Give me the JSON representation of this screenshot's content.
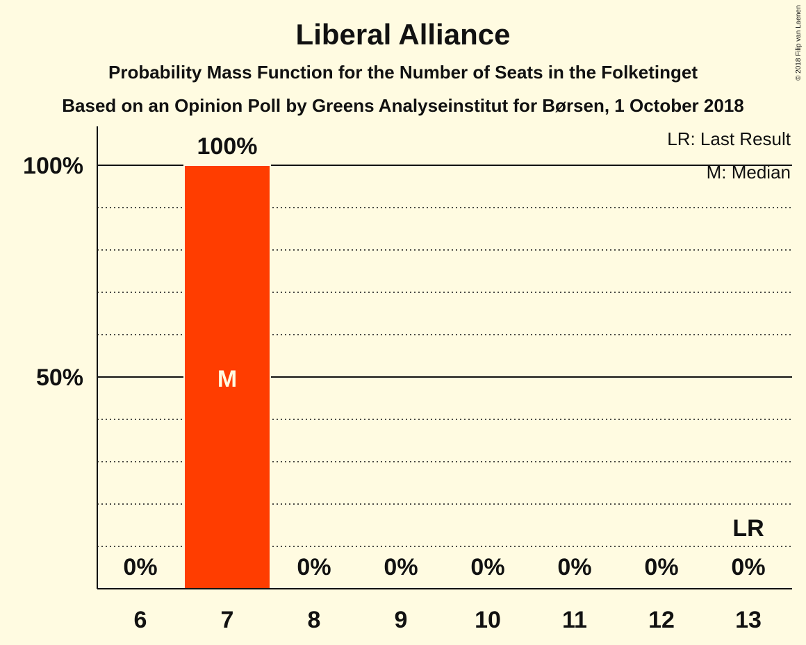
{
  "chart_data": {
    "type": "bar",
    "title": "Liberal Alliance",
    "subtitle1": "Probability Mass Function for the Number of Seats in the Folketinget",
    "subtitle2": "Based on an Opinion Poll by Greens Analyseinstitut for Børsen, 1 October 2018",
    "categories": [
      "6",
      "7",
      "8",
      "9",
      "10",
      "11",
      "12",
      "13"
    ],
    "values": [
      0,
      100,
      0,
      0,
      0,
      0,
      0,
      0
    ],
    "value_labels": [
      "0%",
      "100%",
      "0%",
      "0%",
      "0%",
      "0%",
      "0%",
      "0%"
    ],
    "ylim": [
      0,
      100
    ],
    "yticks": [
      {
        "value": 50,
        "label": "50%"
      },
      {
        "value": 100,
        "label": "100%"
      }
    ],
    "minor_gridlines": [
      10,
      20,
      30,
      40,
      60,
      70,
      80,
      90
    ],
    "median_category": "7",
    "median_marker": "M",
    "last_result_category": "13",
    "last_result_marker": "LR",
    "legend": [
      "LR: Last Result",
      "M: Median"
    ],
    "legend_placement": "top-right",
    "bar_color": "#ff3d00",
    "background_color": "#fffbe1"
  },
  "copyright": "© 2018 Filip van Laenen"
}
